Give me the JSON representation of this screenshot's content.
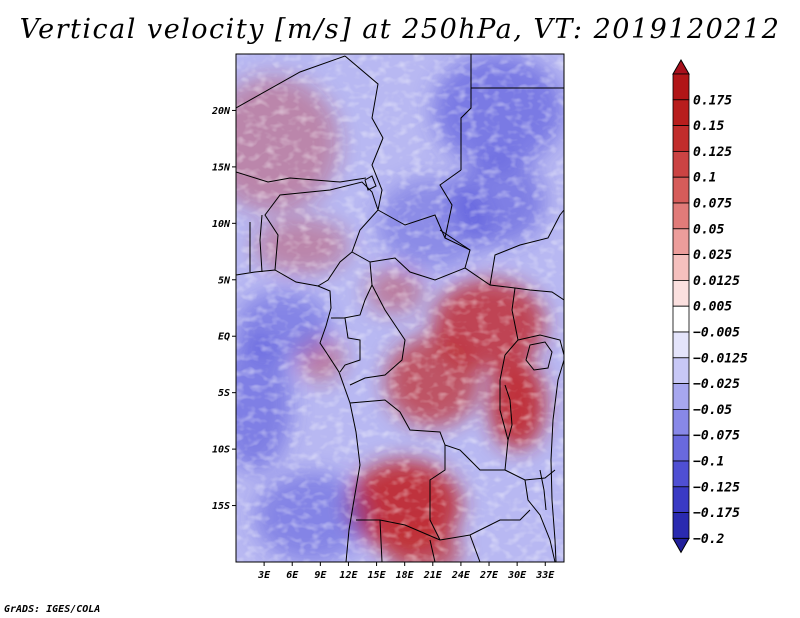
{
  "title": "Vertical velocity [m/s] at 250hPa, VT: 2019120212",
  "footer": "GrADS: IGES/COLA",
  "map": {
    "lon_range": [
      0,
      35
    ],
    "lat_range": [
      -20,
      25
    ],
    "lat_ticks": [
      {
        "value": 20,
        "label": "20N"
      },
      {
        "value": 15,
        "label": "15N"
      },
      {
        "value": 10,
        "label": "10N"
      },
      {
        "value": 5,
        "label": "5N"
      },
      {
        "value": 0,
        "label": "EQ"
      },
      {
        "value": -5,
        "label": "5S"
      },
      {
        "value": -10,
        "label": "10S"
      },
      {
        "value": -15,
        "label": "15S"
      }
    ],
    "lon_ticks": [
      {
        "value": 3,
        "label": "3E"
      },
      {
        "value": 6,
        "label": "6E"
      },
      {
        "value": 9,
        "label": "9E"
      },
      {
        "value": 12,
        "label": "12E"
      },
      {
        "value": 15,
        "label": "15E"
      },
      {
        "value": 18,
        "label": "18E"
      },
      {
        "value": 21,
        "label": "21E"
      },
      {
        "value": 24,
        "label": "24E"
      },
      {
        "value": 27,
        "label": "27E"
      },
      {
        "value": 30,
        "label": "30E"
      },
      {
        "value": 33,
        "label": "33E"
      }
    ],
    "ascent_regions_lonlat": [
      {
        "lon": 27,
        "lat": 1,
        "rlon": 6,
        "rlat": 4,
        "strength": 0.8
      },
      {
        "lon": 21,
        "lat": -4,
        "rlon": 5,
        "rlat": 4,
        "strength": 0.7
      },
      {
        "lon": 30,
        "lat": -6,
        "rlon": 3,
        "rlat": 4,
        "strength": 0.9
      },
      {
        "lon": 18,
        "lat": -15,
        "rlon": 6,
        "rlat": 4,
        "strength": 0.9
      },
      {
        "lon": 20,
        "lat": -19,
        "rlon": 4,
        "rlat": 2,
        "strength": 0.7
      },
      {
        "lon": 4,
        "lat": 17,
        "rlon": 7,
        "rlat": 6,
        "strength": 0.35
      },
      {
        "lon": 7,
        "lat": 8,
        "rlon": 5,
        "rlat": 2.5,
        "strength": 0.35
      },
      {
        "lon": 17,
        "lat": 4,
        "rlon": 3,
        "rlat": 2,
        "strength": 0.4
      },
      {
        "lon": 9,
        "lat": -2,
        "rlon": 2.5,
        "rlat": 2,
        "strength": 0.4
      }
    ],
    "descent_regions_lonlat": [
      {
        "lon": 2,
        "lat": -6,
        "rlon": 4,
        "rlat": 6,
        "strength": 0.5
      },
      {
        "lon": 28,
        "lat": 20,
        "rlon": 7,
        "rlat": 5,
        "strength": 0.55
      },
      {
        "lon": 5,
        "lat": 1,
        "rlon": 5,
        "rlat": 3,
        "strength": 0.45
      },
      {
        "lon": 8,
        "lat": -16,
        "rlon": 6,
        "rlat": 4,
        "strength": 0.45
      },
      {
        "lon": 21,
        "lat": 10,
        "rlon": 6,
        "rlat": 4,
        "strength": 0.4
      },
      {
        "lon": 28,
        "lat": 12,
        "rlon": 5,
        "rlat": 4,
        "strength": 0.5
      }
    ]
  },
  "colorbar": {
    "levels": [
      {
        "label": "0.175",
        "color": "#b11517"
      },
      {
        "label": "0.15",
        "color": "#b81e1d"
      },
      {
        "label": "0.125",
        "color": "#c12d2c"
      },
      {
        "label": "0.1",
        "color": "#cb4343"
      },
      {
        "label": "0.075",
        "color": "#d65c5a"
      },
      {
        "label": "0.05",
        "color": "#e17b79"
      },
      {
        "label": "0.025",
        "color": "#ec9d9b"
      },
      {
        "label": "0.0125",
        "color": "#f5c0be"
      },
      {
        "label": "0.005",
        "color": "#fbe0df"
      },
      {
        "label": "−0.005",
        "color": "#ffffff"
      },
      {
        "label": "−0.0125",
        "color": "#e4e4fb"
      },
      {
        "label": "−0.025",
        "color": "#c8c8f6"
      },
      {
        "label": "−0.05",
        "color": "#a7a7ef"
      },
      {
        "label": "−0.075",
        "color": "#8888e8"
      },
      {
        "label": "−0.1",
        "color": "#6969de"
      },
      {
        "label": "−0.125",
        "color": "#4f4fd3"
      },
      {
        "label": "−0.175",
        "color": "#3a3ac4"
      },
      {
        "label": "−0.2",
        "color": "#2a2ab0"
      }
    ],
    "top_arrow_color": "#a8101c",
    "bottom_arrow_color": "#22209c"
  }
}
